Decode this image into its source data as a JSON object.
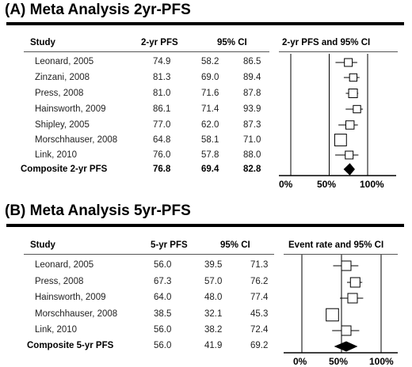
{
  "panels": [
    {
      "title": "(A) Meta Analysis 2yr-PFS",
      "headers": {
        "study": "Study",
        "value": "2-yr PFS",
        "ci": "95% CI",
        "plot": "2-yr PFS and 95% CI"
      },
      "rows": [
        {
          "study": "Leonard, 2005",
          "value": "74.9",
          "lo": "58.2",
          "hi": "86.5"
        },
        {
          "study": "Zinzani, 2008",
          "value": "81.3",
          "lo": "69.0",
          "hi": "89.4"
        },
        {
          "study": "Press, 2008",
          "value": "81.0",
          "lo": "71.6",
          "hi": "87.8"
        },
        {
          "study": "Hainsworth, 2009",
          "value": "86.1",
          "lo": "71.4",
          "hi": "93.9"
        },
        {
          "study": "Shipley, 2005",
          "value": "77.0",
          "lo": "62.0",
          "hi": "87.3"
        },
        {
          "study": "Morschhauser, 2008",
          "value": "64.8",
          "lo": "58.1",
          "hi": "71.0"
        },
        {
          "study": "Link, 2010",
          "value": "76.0",
          "lo": "57.8",
          "hi": "88.0"
        }
      ],
      "composite": {
        "study": "Composite  2-yr PFS",
        "value": "76.8",
        "lo": "69.4",
        "hi": "82.8"
      },
      "ticks": [
        "0%",
        "50%",
        "100%"
      ]
    },
    {
      "title": "(B) Meta Analysis 5yr-PFS",
      "headers": {
        "study": "Study",
        "value": "5-yr PFS",
        "ci": "95% CI",
        "plot": "Event rate and 95% CI"
      },
      "rows": [
        {
          "study": "Leonard, 2005",
          "value": "56.0",
          "lo": "39.5",
          "hi": "71.3"
        },
        {
          "study": "Press, 2008",
          "value": "67.3",
          "lo": "57.0",
          "hi": "76.2"
        },
        {
          "study": "Hainsworth, 2009",
          "value": "64.0",
          "lo": "48.0",
          "hi": "77.4"
        },
        {
          "study": "Morschhauser, 2008",
          "value": "38.5",
          "lo": "32.1",
          "hi": "45.3"
        },
        {
          "study": "Link, 2010",
          "value": "56.0",
          "lo": "38.2",
          "hi": "72.4"
        }
      ],
      "composite": {
        "study": "Composite  5-yr PFS",
        "value": "56.0",
        "lo": "41.9",
        "hi": "69.2"
      },
      "ticks": [
        "0%",
        "50%",
        "100%"
      ]
    }
  ],
  "chart_data": [
    {
      "type": "forest",
      "title": "(A) Meta Analysis 2yr-PFS",
      "xlabel": "2-yr PFS and 95% CI",
      "xlim": [
        0,
        100
      ],
      "x_ticks": [
        "0%",
        "50%",
        "100%"
      ],
      "categories": [
        "Leonard, 2005",
        "Zinzani, 2008",
        "Press, 2008",
        "Hainsworth, 2009",
        "Shipley, 2005",
        "Morschhauser, 2008",
        "Link, 2010"
      ],
      "estimates": [
        74.9,
        81.3,
        81.0,
        86.1,
        77.0,
        64.8,
        76.0
      ],
      "lower": [
        58.2,
        69.0,
        71.6,
        71.4,
        62.0,
        58.1,
        57.8
      ],
      "upper": [
        86.5,
        89.4,
        87.8,
        93.9,
        87.3,
        71.0,
        88.0
      ],
      "marker_weights": [
        0.9,
        0.85,
        1.0,
        0.85,
        0.95,
        1.35,
        0.9
      ],
      "composite": {
        "estimate": 76.8,
        "lower": 69.4,
        "upper": 82.8
      }
    },
    {
      "type": "forest",
      "title": "(B) Meta Analysis 5yr-PFS",
      "xlabel": "Event rate and 95% CI",
      "xlim": [
        0,
        100
      ],
      "x_ticks": [
        "0%",
        "50%",
        "100%"
      ],
      "categories": [
        "Leonard, 2005",
        "Press, 2008",
        "Hainsworth, 2009",
        "Morschhauser, 2008",
        "Link, 2010"
      ],
      "estimates": [
        56.0,
        67.3,
        64.0,
        38.5,
        56.0
      ],
      "lower": [
        39.5,
        57.0,
        48.0,
        32.1,
        38.2
      ],
      "upper": [
        71.3,
        76.2,
        77.4,
        45.3,
        72.4
      ],
      "marker_weights": [
        1.0,
        1.0,
        1.0,
        1.3,
        1.0
      ],
      "composite": {
        "estimate": 56.0,
        "lower": 41.9,
        "upper": 69.2
      }
    }
  ]
}
